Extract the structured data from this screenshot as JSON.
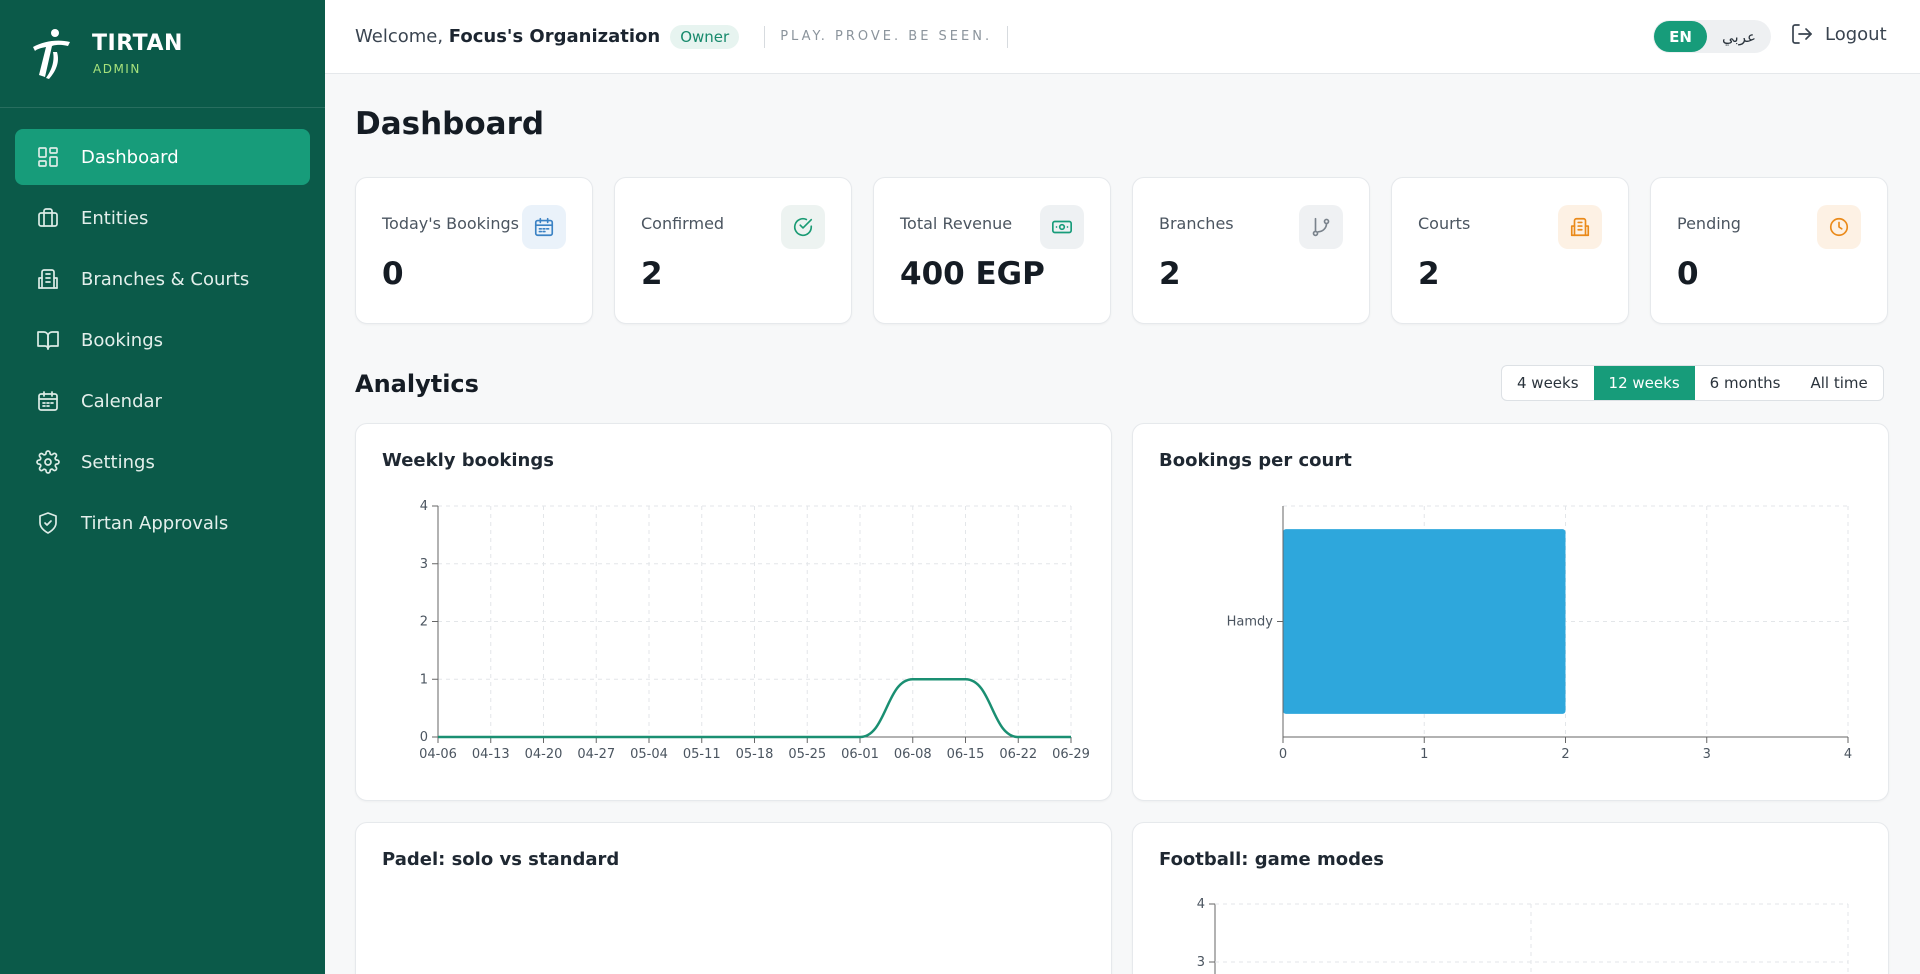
{
  "brand": {
    "name": "TIRTAN",
    "sub": "ADMIN"
  },
  "nav": [
    {
      "label": "Dashboard",
      "icon": "dashboard-grid-icon"
    },
    {
      "label": "Entities",
      "icon": "briefcase-icon"
    },
    {
      "label": "Branches & Courts",
      "icon": "building-icon"
    },
    {
      "label": "Bookings",
      "icon": "book-open-icon"
    },
    {
      "label": "Calendar",
      "icon": "calendar-icon"
    },
    {
      "label": "Settings",
      "icon": "gear-icon"
    },
    {
      "label": "Tirtan Approvals",
      "icon": "shield-check-icon"
    }
  ],
  "header": {
    "welcome_prefix": "Welcome,",
    "org_name": "Focus's Organization",
    "role": "Owner",
    "tagline": "PLAY. PROVE. BE SEEN.",
    "lang_en": "EN",
    "lang_ar": "عربي",
    "logout": "Logout"
  },
  "page": {
    "title": "Dashboard"
  },
  "stats": [
    {
      "label": "Today's Bookings",
      "value": "0",
      "icon": "calendar-icon",
      "color": "#3b82c4",
      "bg": "#eaf2fa"
    },
    {
      "label": "Confirmed",
      "value": "2",
      "icon": "check-circle-icon",
      "color": "#1a9b74",
      "bg": "#edf3f1"
    },
    {
      "label": "Total Revenue",
      "value": "400 EGP",
      "icon": "cash-icon",
      "color": "#179c7a",
      "bg": "#eef1f3"
    },
    {
      "label": "Branches",
      "value": "2",
      "icon": "git-branch-icon",
      "color": "#7a838c",
      "bg": "#eff1f3"
    },
    {
      "label": "Courts",
      "value": "2",
      "icon": "building-icon",
      "color": "#ea8a1a",
      "bg": "#fdf1e4"
    },
    {
      "label": "Pending",
      "value": "0",
      "icon": "clock-icon",
      "color": "#ea8a1a",
      "bg": "#fdf1e4"
    }
  ],
  "analytics": {
    "title": "Analytics",
    "ranges": [
      "4 weeks",
      "12 weeks",
      "6 months",
      "All time"
    ],
    "active_range": "12 weeks"
  },
  "panels": {
    "weekly": "Weekly bookings",
    "per_court": "Bookings per court",
    "padel": "Padel: solo vs standard",
    "football": "Football: game modes"
  },
  "colors": {
    "sidebar": "#0b5a49",
    "accent": "#179c7a",
    "line": "#1a8f72",
    "bar": "#2ea7dc"
  },
  "chart_data": [
    {
      "type": "line",
      "title": "Weekly bookings",
      "x": [
        "04-06",
        "04-13",
        "04-20",
        "04-27",
        "05-04",
        "05-11",
        "05-18",
        "05-25",
        "06-01",
        "06-08",
        "06-15",
        "06-22",
        "06-29"
      ],
      "y": [
        0,
        0,
        0,
        0,
        0,
        0,
        0,
        0,
        0,
        1,
        1,
        0,
        0
      ],
      "ylim": [
        0,
        4
      ],
      "yticks": [
        0,
        1,
        2,
        3,
        4
      ],
      "grid": true
    },
    {
      "type": "bar",
      "orientation": "horizontal",
      "title": "Bookings per court",
      "categories": [
        "Hamdy"
      ],
      "values": [
        2
      ],
      "xlim": [
        0,
        4
      ],
      "xticks": [
        0,
        1,
        2,
        3,
        4
      ],
      "grid": true
    },
    {
      "type": "bar",
      "title": "Padel: solo vs standard"
    },
    {
      "type": "bar",
      "title": "Football: game modes",
      "yticks_visible": [
        4,
        3
      ]
    }
  ]
}
